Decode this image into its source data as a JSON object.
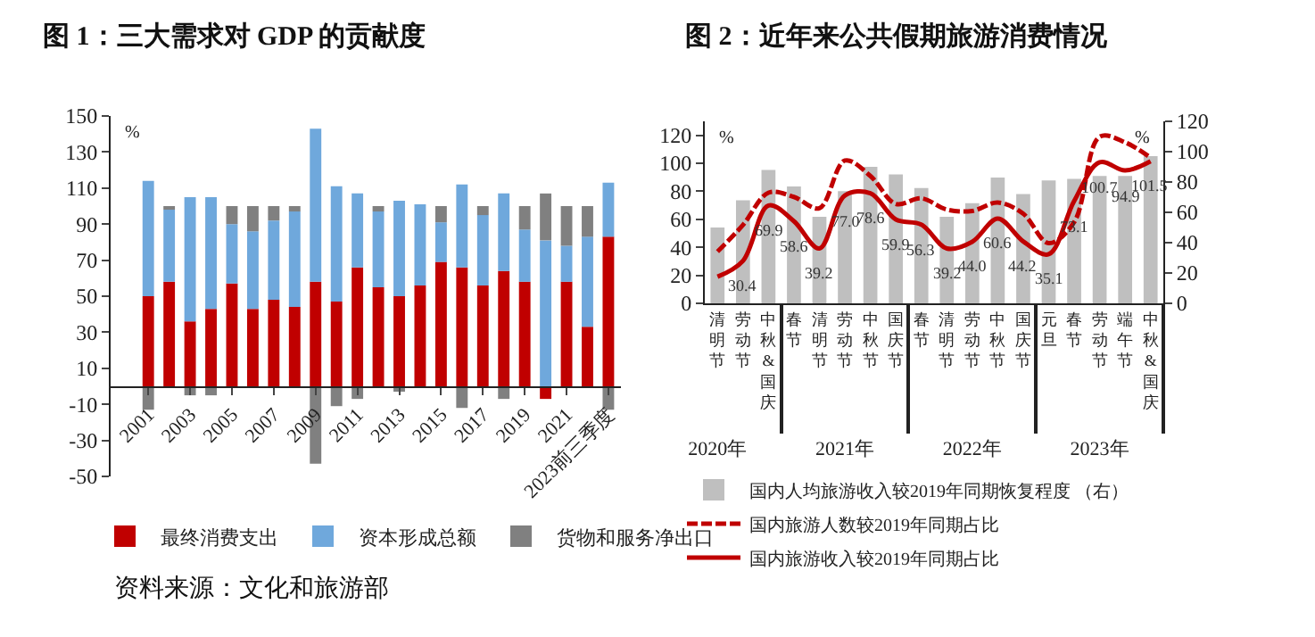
{
  "chart_data": [
    {
      "type": "bar",
      "title": "图 1：三大需求对 GDP 的贡献度",
      "ylabel": "%",
      "stacked": true,
      "legend": "bottom",
      "grid": false,
      "categories": [
        "2001",
        null,
        "2003",
        null,
        "2005",
        null,
        "2007",
        null,
        "2009",
        null,
        "2011",
        null,
        "2013",
        null,
        "2015",
        null,
        "2017",
        null,
        "2019",
        null,
        "2021",
        null,
        "2023前三季度"
      ],
      "series": [
        {
          "name": "最终消费支出",
          "color": "#c00000",
          "values": [
            50,
            58,
            36,
            43,
            57,
            43,
            48,
            44,
            58,
            47,
            66,
            55,
            50,
            56,
            69,
            66,
            56,
            64,
            58,
            -7,
            58,
            33,
            83
          ]
        },
        {
          "name": "资本形成总额",
          "color": "#6fa8dc",
          "values": [
            64,
            40,
            69,
            62,
            33,
            43,
            44,
            53,
            85,
            64,
            41,
            42,
            53,
            45,
            22,
            46,
            39,
            43,
            29,
            81,
            20,
            50,
            30
          ]
        },
        {
          "name": "货物和服务净出口",
          "color": "#808080",
          "values": [
            -13,
            2,
            -5,
            -5,
            10,
            14,
            8,
            3,
            -43,
            -11,
            -7,
            3,
            -3,
            null,
            9,
            -12,
            5,
            -7,
            13,
            26,
            22,
            17,
            -13
          ]
        }
      ],
      "ylim": [
        -50,
        150
      ],
      "yticks": [
        150,
        130,
        110,
        90,
        70,
        50,
        30,
        10,
        -10,
        -30,
        -50
      ],
      "annotations": [
        "资料来源：文化和旅游部"
      ]
    },
    {
      "type": "bar",
      "title": "图 2：近年来公共假期旅游消费情况",
      "ylabel": "%",
      "y2label": "%",
      "legend": "bottom",
      "grid": false,
      "marker": "none",
      "categories": [
        "清明节",
        "劳动节",
        "中秋&国庆",
        "春节",
        "清明节",
        "劳动节",
        "中秋节",
        "国庆节",
        "春节",
        "清明节",
        "劳动节",
        "中秋节",
        "国庆节",
        "元旦",
        "春节",
        "劳动节",
        "端午节",
        "中秋&国庆"
      ],
      "series": [
        {
          "name": "国内人均旅游收入较2019年同期恢复程度 （右）",
          "color": "#bfbfbf",
          "axis": "y2",
          "values": [
            50,
            68,
            88,
            77,
            57,
            74,
            90,
            85,
            76,
            57,
            66,
            83,
            72,
            81,
            82,
            84,
            84,
            97
          ]
        },
        {
          "type": "line",
          "name": "国内旅游人数较2019年同期占比",
          "color": "#c00000",
          "line_style": "dashed",
          "values": [
            37,
            56,
            79,
            76,
            68,
            102,
            91,
            71,
            75,
            67,
            66,
            72,
            64,
            43,
            58,
            119,
            115,
            104
          ]
        },
        {
          "type": "line",
          "name": "国内旅游收入较2019年同期占比",
          "color": "#c00000",
          "line_style": "solid",
          "values": [
            19,
            30.4,
            69.9,
            58.6,
            39.2,
            77.0,
            78.6,
            59.9,
            56.3,
            39.2,
            44.0,
            60.6,
            44.2,
            35.1,
            73.1,
            100.7,
            94.9,
            101.5
          ],
          "value_labels": [
            null,
            "30.4",
            "69.9",
            "58.6",
            "39.2",
            "77.0",
            "78.6",
            "59.9",
            "56.3",
            "39.2",
            "44.0",
            "60.6",
            "44.2",
            "35.1",
            "73.1",
            "100.7",
            "94.9",
            "101.5"
          ]
        }
      ],
      "ylim": [
        0,
        130
      ],
      "yticks": [
        0,
        20,
        40,
        60,
        80,
        100,
        120
      ],
      "y2lim": [
        0,
        120
      ],
      "y2ticks": [
        0,
        20,
        40,
        60,
        80,
        100,
        120
      ],
      "x2lim": [
        2019.9,
        2023.5
      ],
      "x2ticks": [
        {
          "value": 2020,
          "label": "2020年"
        },
        {
          "value": 2021,
          "label": "2021年"
        },
        {
          "value": 2022,
          "label": "2022年"
        },
        {
          "value": 2023,
          "label": "2023年"
        }
      ]
    }
  ]
}
